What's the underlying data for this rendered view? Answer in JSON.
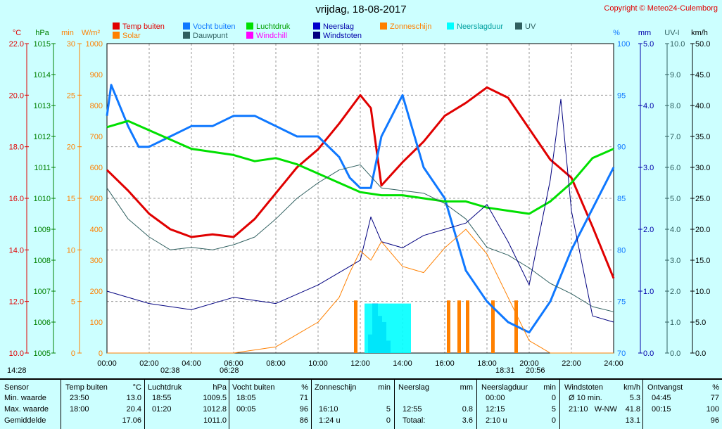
{
  "header": {
    "title": "vrijdag, 18-08-2017",
    "copyright": "Copyright © Meteo24-Culemborg"
  },
  "legend": [
    {
      "label": "Temp buiten",
      "color": "#e00000"
    },
    {
      "label": "Vocht buiten",
      "color": "#0f78ff"
    },
    {
      "label": "Luchtdruk",
      "color": "#00e000"
    },
    {
      "label": "Neerslag",
      "color": "#0000cc"
    },
    {
      "label": "Zonneschijn",
      "color": "#ff8000"
    },
    {
      "label": "Neerslagduur",
      "color": "#00ffff"
    },
    {
      "label": "UV",
      "color": "#306060"
    },
    {
      "label": "Solar",
      "color": "#ff8000"
    },
    {
      "label": "Dauwpunt",
      "color": "#306060"
    },
    {
      "label": "Windchill",
      "color": "#ff00ff"
    },
    {
      "label": "Windstoten",
      "color": "#00007f"
    }
  ],
  "axes": {
    "temp": {
      "unit": "°C",
      "ticks": [
        "22.0",
        "20.0",
        "18.0",
        "16.0",
        "14.0",
        "12.0",
        "10.0"
      ],
      "color": "#e00000"
    },
    "pressure": {
      "unit": "hPa",
      "ticks": [
        "1015",
        "1014",
        "1013",
        "1012",
        "1011",
        "1010",
        "1009",
        "1008",
        "1007",
        "1006",
        "1005"
      ],
      "color": "#008000"
    },
    "sun": {
      "unit": "min",
      "ticks": [
        "30",
        "25",
        "20",
        "15",
        "10",
        "5",
        "0"
      ],
      "color": "#ff8000"
    },
    "solar": {
      "unit": "W/m²",
      "ticks": [
        "1000",
        "900",
        "800",
        "700",
        "600",
        "500",
        "400",
        "300",
        "200",
        "100",
        "0"
      ],
      "color": "#ff8000"
    },
    "humidity": {
      "unit": "%",
      "ticks": [
        "100",
        "95",
        "90",
        "85",
        "80",
        "75",
        "70"
      ],
      "color": "#0f78ff"
    },
    "rain": {
      "unit": "mm",
      "ticks": [
        "5.0",
        "4.0",
        "3.0",
        "2.0",
        "1.0",
        "0.0"
      ],
      "color": "#0000aa"
    },
    "uv": {
      "unit": "UV-I",
      "ticks": [
        "10.0",
        "9.0",
        "8.0",
        "7.0",
        "6.0",
        "5.0",
        "4.0",
        "3.0",
        "2.0",
        "1.0",
        "0.0"
      ],
      "color": "#306060"
    },
    "wind": {
      "unit": "km/h",
      "ticks": [
        "50.0",
        "45.0",
        "40.0",
        "35.0",
        "30.0",
        "25.0",
        "20.0",
        "15.0",
        "10.0",
        "5.0",
        "0.0"
      ],
      "color": "#000000"
    },
    "x_ticks": [
      "00:00",
      "02:00",
      "04:00",
      "06:00",
      "08:00",
      "10:00",
      "12:00",
      "14:00",
      "16:00",
      "18:00",
      "20:00",
      "22:00",
      "24:00"
    ]
  },
  "annotations": {
    "t1": "14:28",
    "t2": "02:38",
    "t3": "06:28",
    "t4": "18:31",
    "t5": "20:56"
  },
  "chart_data": {
    "type": "line",
    "title": "vrijdag, 18-08-2017",
    "x_range": [
      "00:00",
      "24:00"
    ],
    "series": [
      {
        "name": "Temp buiten",
        "unit": "°C",
        "x": [
          0,
          1,
          2,
          3,
          4,
          5,
          6,
          7,
          8,
          9,
          10,
          11,
          12,
          12.5,
          13,
          14,
          15,
          16,
          17,
          18,
          19,
          20,
          21,
          22,
          23,
          24
        ],
        "y": [
          17.1,
          16.3,
          15.4,
          14.8,
          14.5,
          14.6,
          14.5,
          15.2,
          16.2,
          17.2,
          17.9,
          18.9,
          20.0,
          19.5,
          16.5,
          17.4,
          18.2,
          19.2,
          19.7,
          20.3,
          19.9,
          18.7,
          17.5,
          16.8,
          14.9,
          12.9
        ]
      },
      {
        "name": "Vocht buiten",
        "unit": "%",
        "x": [
          0,
          0.2,
          1,
          1.5,
          2,
          3,
          4,
          5,
          6,
          7,
          8,
          9,
          10,
          11,
          11.5,
          12,
          12.5,
          13,
          13.5,
          14,
          15,
          16,
          17,
          18,
          19,
          20,
          21,
          22,
          23,
          24
        ],
        "y": [
          93,
          96,
          92,
          90,
          90,
          91,
          92,
          92,
          93,
          93,
          92,
          91,
          91,
          89,
          87,
          86,
          86,
          91,
          93,
          95,
          88,
          85,
          78,
          75,
          73,
          72,
          75,
          80,
          84,
          88
        ]
      },
      {
        "name": "Luchtdruk",
        "unit": "hPa",
        "x": [
          0,
          1,
          2,
          3,
          4,
          5,
          6,
          7,
          8,
          9,
          10,
          11,
          12,
          13,
          14,
          15,
          16,
          17,
          18,
          19,
          20,
          21,
          22,
          23,
          24
        ],
        "y": [
          1012.3,
          1012.5,
          1012.2,
          1011.9,
          1011.6,
          1011.5,
          1011.4,
          1011.2,
          1011.3,
          1011.1,
          1010.8,
          1010.5,
          1010.2,
          1010.1,
          1010.1,
          1010.0,
          1009.9,
          1009.9,
          1009.7,
          1009.6,
          1009.5,
          1009.9,
          1010.5,
          1011.3,
          1011.6
        ]
      },
      {
        "name": "Dauwpunt",
        "unit": "°C",
        "x": [
          0,
          1,
          2,
          3,
          4,
          5,
          6,
          7,
          8,
          9,
          10,
          11,
          12,
          13,
          14,
          15,
          16,
          17,
          18,
          19,
          20,
          21,
          22,
          23,
          24
        ],
        "y": [
          16.4,
          15.2,
          14.5,
          14.0,
          14.1,
          14.0,
          14.2,
          14.5,
          15.2,
          16.0,
          16.6,
          17.1,
          17.3,
          16.4,
          16.3,
          16.2,
          15.8,
          15.2,
          14.1,
          13.8,
          13.3,
          12.7,
          12.3,
          11.8,
          11.6
        ]
      },
      {
        "name": "Windstoten",
        "unit": "km/h",
        "x": [
          0,
          2,
          4,
          6,
          8,
          10,
          11,
          12,
          12.5,
          13,
          14,
          15,
          16,
          17,
          18,
          19,
          20,
          21,
          21.5,
          22,
          23,
          24
        ],
        "y": [
          10,
          8,
          7,
          9,
          8,
          11,
          13,
          15,
          22,
          18,
          17,
          19,
          20,
          21,
          24,
          18,
          11,
          28,
          41,
          23,
          6,
          5
        ]
      },
      {
        "name": "Solar",
        "unit": "W/m²",
        "x": [
          0,
          6,
          8,
          9,
          10,
          11,
          11.5,
          12,
          12.5,
          13,
          14,
          15,
          16,
          17,
          18,
          19,
          20,
          21,
          24
        ],
        "y": [
          0,
          0,
          20,
          60,
          100,
          180,
          260,
          330,
          300,
          360,
          280,
          260,
          340,
          400,
          320,
          180,
          40,
          0,
          0
        ]
      },
      {
        "name": "Neerslag",
        "unit": "mm",
        "x": [
          12.5,
          12.7,
          12.9,
          13.1,
          13.3
        ],
        "y": [
          0.3,
          0.8,
          0.6,
          0.5,
          0.2
        ]
      }
    ],
    "summary": {
      "headers": [
        "Sensor",
        "Temp buiten",
        "°C",
        "Luchtdruk",
        "hPa",
        "Vocht buiten",
        "%",
        "Zonneschijn",
        "min",
        "Neerslag",
        "mm",
        "Neerslagduur",
        "min",
        "Windstoten",
        "km/h",
        "Ontvangst",
        "%"
      ],
      "rows": [
        {
          "label": "Min. waarde",
          "temp_t": "23:50",
          "temp_v": "13.0",
          "druk_t": "18:55",
          "druk_v": "1009.5",
          "vocht_t": "18:05",
          "vocht_v": "71",
          "zon_t": "",
          "zon_v": "",
          "neer_t": "",
          "neer_v": "",
          "duur_t": "00:00",
          "duur_v": "0",
          "wind_t": "Ø 10 min.",
          "wind_v": "5.3",
          "ont_t": "04:45",
          "ont_v": "77"
        },
        {
          "label": "Max. waarde",
          "temp_t": "18:00",
          "temp_v": "20.4",
          "druk_t": "01:20",
          "druk_v": "1012.8",
          "vocht_t": "00:05",
          "vocht_v": "96",
          "zon_t": "16:10",
          "zon_v": "5",
          "neer_t": "12:55",
          "neer_v": "0.8",
          "duur_t": "12:15",
          "duur_v": "5",
          "wind_t": "21:10   W-NW",
          "wind_v": "41.8",
          "ont_t": "00:15",
          "ont_v": "100"
        },
        {
          "label": "Gemiddelde",
          "temp_t": "",
          "temp_v": "17.06",
          "druk_t": "",
          "druk_v": "1011.0",
          "vocht_t": "",
          "vocht_v": "86",
          "zon_t": "1:24 u",
          "zon_v": "0",
          "neer_t": "Totaal:",
          "neer_v": "3.6",
          "duur_t": "2:10 u",
          "duur_v": "0",
          "wind_t": "",
          "wind_v": "13.1",
          "ont_t": "",
          "ont_v": "96"
        }
      ]
    }
  }
}
